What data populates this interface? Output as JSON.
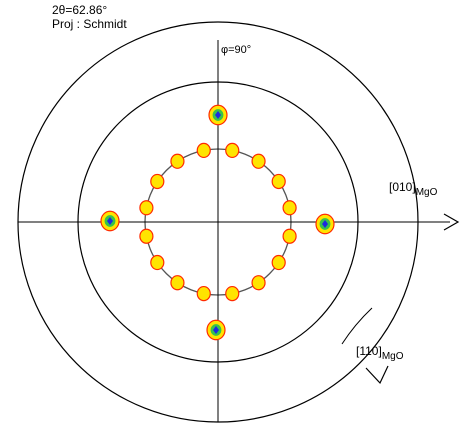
{
  "header": {
    "two_theta": "2θ=62.86°",
    "projection": "Proj : Schmidt"
  },
  "labels": {
    "phi": "φ=90°",
    "dir_010_main": "[010]",
    "dir_010_sub": "MgO",
    "dir_110_main": "[110]",
    "dir_110_sub": "MgO"
  },
  "colors": {
    "axes": "#000000",
    "circles": "#000000",
    "inner_circle": "#444444",
    "contour_outer": "#ff2a00",
    "contour_mid": "#ffe400",
    "contour_core_green": "#39c24a",
    "contour_core_blue": "#1c2ae0"
  },
  "pole_figure": {
    "projection": "Schmidt",
    "inner_ring_angle_deg": 45,
    "strong_poles": [
      "top",
      "left",
      "right",
      "bottom"
    ],
    "ring_spot_count": 16
  }
}
